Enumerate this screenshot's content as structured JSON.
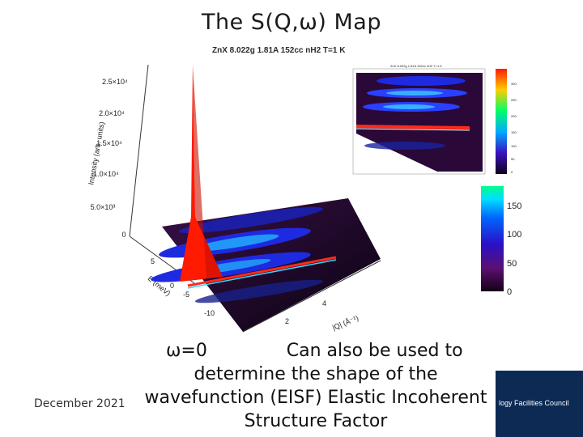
{
  "title": "The S(Q,ω) Map",
  "figure": {
    "heading": "ZnX 8.022g 1.81A 152cc nH2 T=1 K",
    "inset_heading": "ZnX 8.022g 1.81A 152cc nH2 T=1 K",
    "z_axis_label": "Intensity (arb. units)",
    "z_ticks": [
      "2.5×10⁴",
      "2.0×10⁴",
      "1.5×10⁴",
      "1.0×10⁴",
      "5.0×10³",
      "0"
    ],
    "energy_axis_label": "E (meV)",
    "energy_ticks": [
      "0",
      "5",
      "0",
      "-5",
      "-10"
    ],
    "q_axis_label": "|Q| (Å⁻¹)",
    "q_ticks": [
      "2",
      "4"
    ],
    "colorbar_ticks": [
      "150",
      "100",
      "50",
      "0"
    ],
    "inset_colorbar_ticks": [
      "300",
      "250",
      "200",
      "150",
      "100",
      "50",
      "0"
    ],
    "colors": {
      "peak": "#ff1a00",
      "elastic_line": "#ff2a18",
      "surface_base": "#2a0838",
      "band": "#1a2bd8"
    }
  },
  "caption": {
    "omega_label": "ω=0",
    "line1_rest": "Can also be used to",
    "line2": "determine the shape of the",
    "line3": "wavefunction (EISF) Elastic Incoherent",
    "line4": "Structure Factor"
  },
  "footer": {
    "date": "December 2021",
    "logo_text": "logy Facilities Council"
  }
}
